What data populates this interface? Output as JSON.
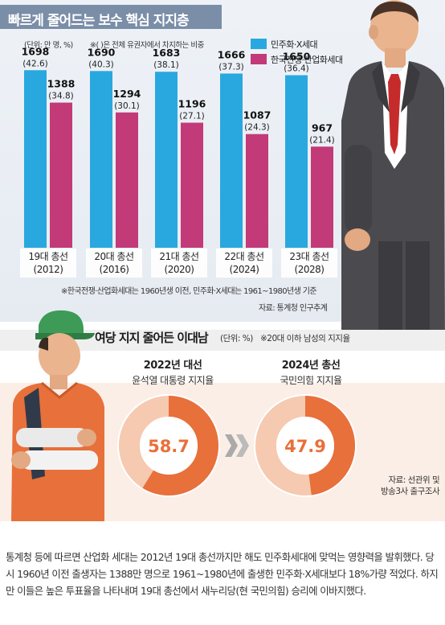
{
  "chart1": {
    "title": "빠르게 줄어드는 보수 핵심 지지층",
    "unit_note": "(단위: 만 명, %)",
    "paren_note": "※( )은 전체 유권자에서 차지하는 비중",
    "legend": [
      {
        "label": "민주화·X세대",
        "color": "#29a8df"
      },
      {
        "label": "한국전쟁·산업화세대",
        "color": "#c23a77"
      }
    ],
    "footnote": "※한국전쟁·산업화세대는 1960년생 이전, 민주화·X세대는 1961~1980년생 기준",
    "source": "자료: 통계청 인구추계"
  },
  "chart2": {
    "title": "여당 지지 줄어든 이대남",
    "unit": "(단위: %)",
    "subnote": "※20대 이하 남성의 지지율",
    "source_lines": [
      "자료: 선관위 및",
      "방송3사 출구조사"
    ],
    "donut_color": "#e8703a",
    "donut_track": "#f6c9b1"
  },
  "chart_data": [
    {
      "type": "bar",
      "title": "빠르게 줄어드는 보수 핵심 지지층",
      "categories": [
        "19대 총선\n(2012)",
        "20대 총선\n(2016)",
        "21대 총선\n(2020)",
        "22대 총선\n(2024)",
        "23대 총선\n(2028)"
      ],
      "series": [
        {
          "name": "민주화·X세대",
          "values": [
            1698,
            1690,
            1683,
            1666,
            1650
          ],
          "shares": [
            "(42.6)",
            "(40.3)",
            "(38.1)",
            "(37.3)",
            "(36.4)"
          ]
        },
        {
          "name": "한국전쟁·산업화세대",
          "values": [
            1388,
            1294,
            1196,
            1087,
            967
          ],
          "shares": [
            "(34.8)",
            "(30.1)",
            "(27.1)",
            "(24.3)",
            "(21.4)"
          ]
        }
      ],
      "ylim": [
        0,
        2000
      ],
      "grid": false,
      "legend_position": "top-right"
    },
    {
      "type": "pie",
      "title": "여당 지지 줄어든 이대남",
      "items": [
        {
          "year_label": "2022년 대선",
          "subtitle": "윤석열 대통령 지지율",
          "value": 58.7
        },
        {
          "year_label": "2024년 총선",
          "subtitle": "국민의힘 지지율",
          "value": 47.9
        }
      ]
    }
  ],
  "article": {
    "text": "통계청 등에 따르면 산업화 세대는 2012년 19대 총선까지만 해도 민주화세대에 맞먹는 영향력을 발휘했다. 당시 1960년 이전 출생자는 1388만 명으로 1961~1980년에 출생한 민주화·X세대보다 18%가량 적었다. 하지만 이들은 높은 투표율을 나타내며 19대 총선에서 새누리당(현 국민의힘) 승리에 이바지했다."
  }
}
